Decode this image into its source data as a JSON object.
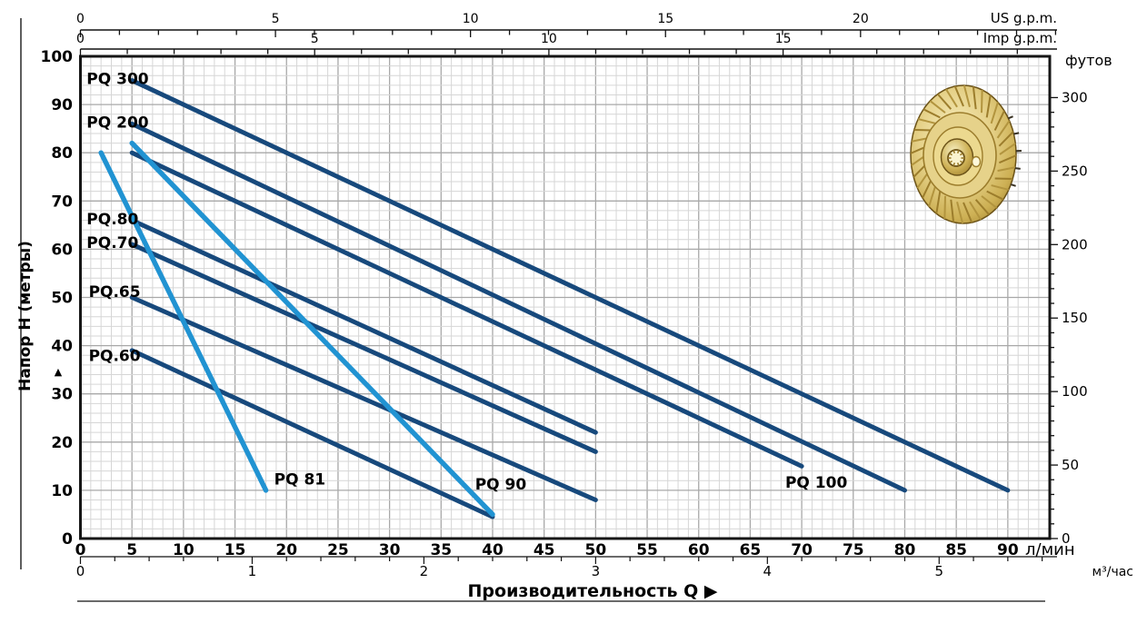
{
  "colors": {
    "dark_curve": "#17497c",
    "light_curve": "#2193d2",
    "frame": "#161616",
    "grid_minor": "#d6d6d6",
    "grid_major": "#a8a8a8",
    "text": "#000000",
    "gold_light": "#f7efc2",
    "gold": "#e6d28a",
    "gold_mid": "#cdb054",
    "gold_dark": "#9c7d2c",
    "gold_deep": "#6c5318"
  },
  "axis_titles": {
    "y_left": "Напор H (метры)",
    "y_left_arrow": "▲",
    "y_right": "футов",
    "x_bottom_primary": "л/мин",
    "x_bottom_secondary": "м³/час",
    "x_top_primary": "US g.p.m.",
    "x_top_secondary": "Imp g.p.m.",
    "x_label": "Производительность Q",
    "x_label_arrow": "▶"
  },
  "chart_data": {
    "type": "line",
    "title": "Pump performance curves PQ series (head vs capacity)",
    "grid": "on",
    "x_axis": {
      "label": "л/мин",
      "range": [
        0,
        94
      ],
      "major_ticks": [
        0,
        5,
        10,
        15,
        20,
        25,
        30,
        35,
        40,
        45,
        50,
        55,
        60,
        65,
        70,
        75,
        80,
        85,
        90
      ],
      "minor_step": 1
    },
    "y_axis": {
      "label": "Напор H (метры)",
      "range": [
        0,
        100
      ],
      "major_ticks": [
        0,
        10,
        20,
        30,
        40,
        50,
        60,
        70,
        80,
        90,
        100
      ],
      "minor_step": 2
    },
    "x_axis_m3h": {
      "label": "м³/час",
      "ticks": [
        0,
        1,
        2,
        3,
        4,
        5
      ],
      "lpm_per_unit": 16.6667,
      "minor_step": 0.2
    },
    "x_axis_usgpm": {
      "label": "US g.p.m.",
      "ticks": [
        0,
        5,
        10,
        15,
        20
      ],
      "lpm_per_unit": 3.7854,
      "minor_step": 1,
      "minor_max": 25
    },
    "x_axis_impgpm": {
      "label": "Imp g.p.m.",
      "ticks": [
        0,
        5,
        10,
        15
      ],
      "lpm_per_unit": 4.5461,
      "minor_step": 1,
      "minor_max": 20
    },
    "y_axis_feet": {
      "label": "футов",
      "ticks": [
        0,
        50,
        100,
        150,
        200,
        250,
        300
      ],
      "m_per_unit": 0.3048,
      "minor_step": 10,
      "minor_max": 300
    },
    "series": [
      {
        "id": "pq300",
        "name": "PQ 300",
        "palette": "dark",
        "points": [
          [
            5,
            95
          ],
          [
            90,
            10
          ]
        ],
        "label_pos": [
          0.6,
          94.3
        ]
      },
      {
        "id": "pq200",
        "name": "PQ 200",
        "palette": "dark",
        "points": [
          [
            5,
            86
          ],
          [
            80,
            10
          ]
        ],
        "label_pos": [
          0.6,
          85.2
        ]
      },
      {
        "id": "pq100",
        "name": "PQ 100",
        "palette": "dark",
        "points": [
          [
            5,
            80
          ],
          [
            70,
            15
          ]
        ],
        "label_pos": [
          68.4,
          10.5
        ]
      },
      {
        "id": "pq80",
        "name": "PQ.80",
        "palette": "dark",
        "points": [
          [
            5,
            66
          ],
          [
            50,
            22
          ]
        ],
        "label_pos": [
          0.6,
          65.2
        ]
      },
      {
        "id": "pq70",
        "name": "PQ.70",
        "palette": "dark",
        "points": [
          [
            5,
            61
          ],
          [
            50,
            18
          ]
        ],
        "label_pos": [
          0.6,
          60.3
        ]
      },
      {
        "id": "pq65",
        "name": "PQ.65",
        "palette": "dark",
        "points": [
          [
            5,
            50
          ],
          [
            50,
            8
          ]
        ],
        "label_pos": [
          0.8,
          50.1
        ]
      },
      {
        "id": "pq60",
        "name": "PQ.60",
        "palette": "dark",
        "points": [
          [
            5,
            39
          ],
          [
            40,
            4.5
          ]
        ],
        "label_pos": [
          0.8,
          36.8
        ]
      },
      {
        "id": "pq81",
        "name": "PQ 81",
        "palette": "light",
        "points": [
          [
            2,
            80
          ],
          [
            18,
            10
          ]
        ],
        "label_pos": [
          18.8,
          11.2
        ]
      },
      {
        "id": "pq90",
        "name": "PQ 90",
        "palette": "light",
        "points": [
          [
            5,
            82
          ],
          [
            40,
            5
          ]
        ],
        "label_pos": [
          38.3,
          10.2
        ]
      }
    ]
  },
  "decor": {
    "impeller": "brass pump impeller photo"
  }
}
